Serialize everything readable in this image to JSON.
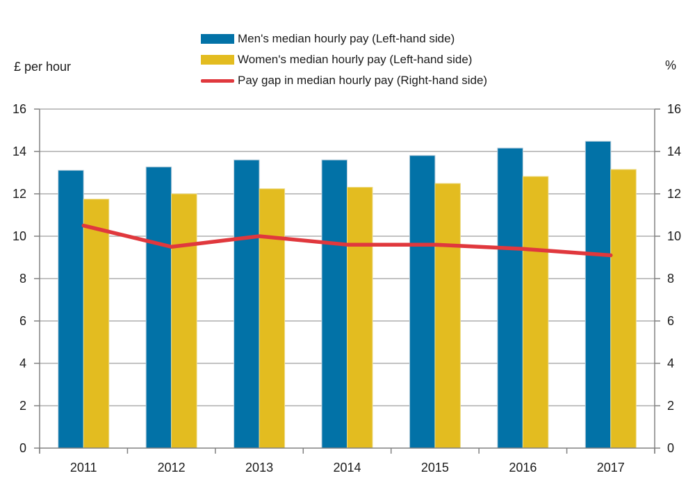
{
  "chart_data": {
    "type": "combo-bar-line",
    "categories": [
      "2011",
      "2012",
      "2013",
      "2014",
      "2015",
      "2016",
      "2017"
    ],
    "series": [
      {
        "name": "Men's median hourly pay (Left-hand side)",
        "type": "bar",
        "axis": "left",
        "color": "#0272A7",
        "edge_color": "#B9CEDC",
        "values": [
          13.11,
          13.27,
          13.6,
          13.6,
          13.81,
          14.16,
          14.48
        ]
      },
      {
        "name": "Women's median hourly pay (Left-hand side)",
        "type": "bar",
        "axis": "left",
        "color": "#E3BC20",
        "edge_color": "#EDDC8C",
        "values": [
          11.75,
          12.0,
          12.24,
          12.31,
          12.49,
          12.82,
          13.15
        ]
      },
      {
        "name": "Pay gap in median hourly pay (Right-hand side)",
        "type": "line",
        "axis": "right",
        "color": "#E0383D",
        "values": [
          10.5,
          9.5,
          10.0,
          9.6,
          9.6,
          9.4,
          9.1
        ]
      }
    ],
    "left_axis": {
      "label": "£ per hour",
      "min": 0,
      "max": 16,
      "step": 2,
      "tick_labels": [
        "0",
        "2",
        "4",
        "6",
        "8",
        "10",
        "12",
        "14",
        "16"
      ]
    },
    "right_axis": {
      "label": "%",
      "min": 0,
      "max": 16,
      "step": 2,
      "tick_labels": [
        "0",
        "2",
        "4",
        "6",
        "8",
        "10",
        "12",
        "14",
        "16"
      ]
    },
    "legend_position": "top-center",
    "grid": true,
    "gridline_color": "#9E9E9E",
    "axis_line_color": "#808080",
    "text_color": "#1A1A1A"
  }
}
